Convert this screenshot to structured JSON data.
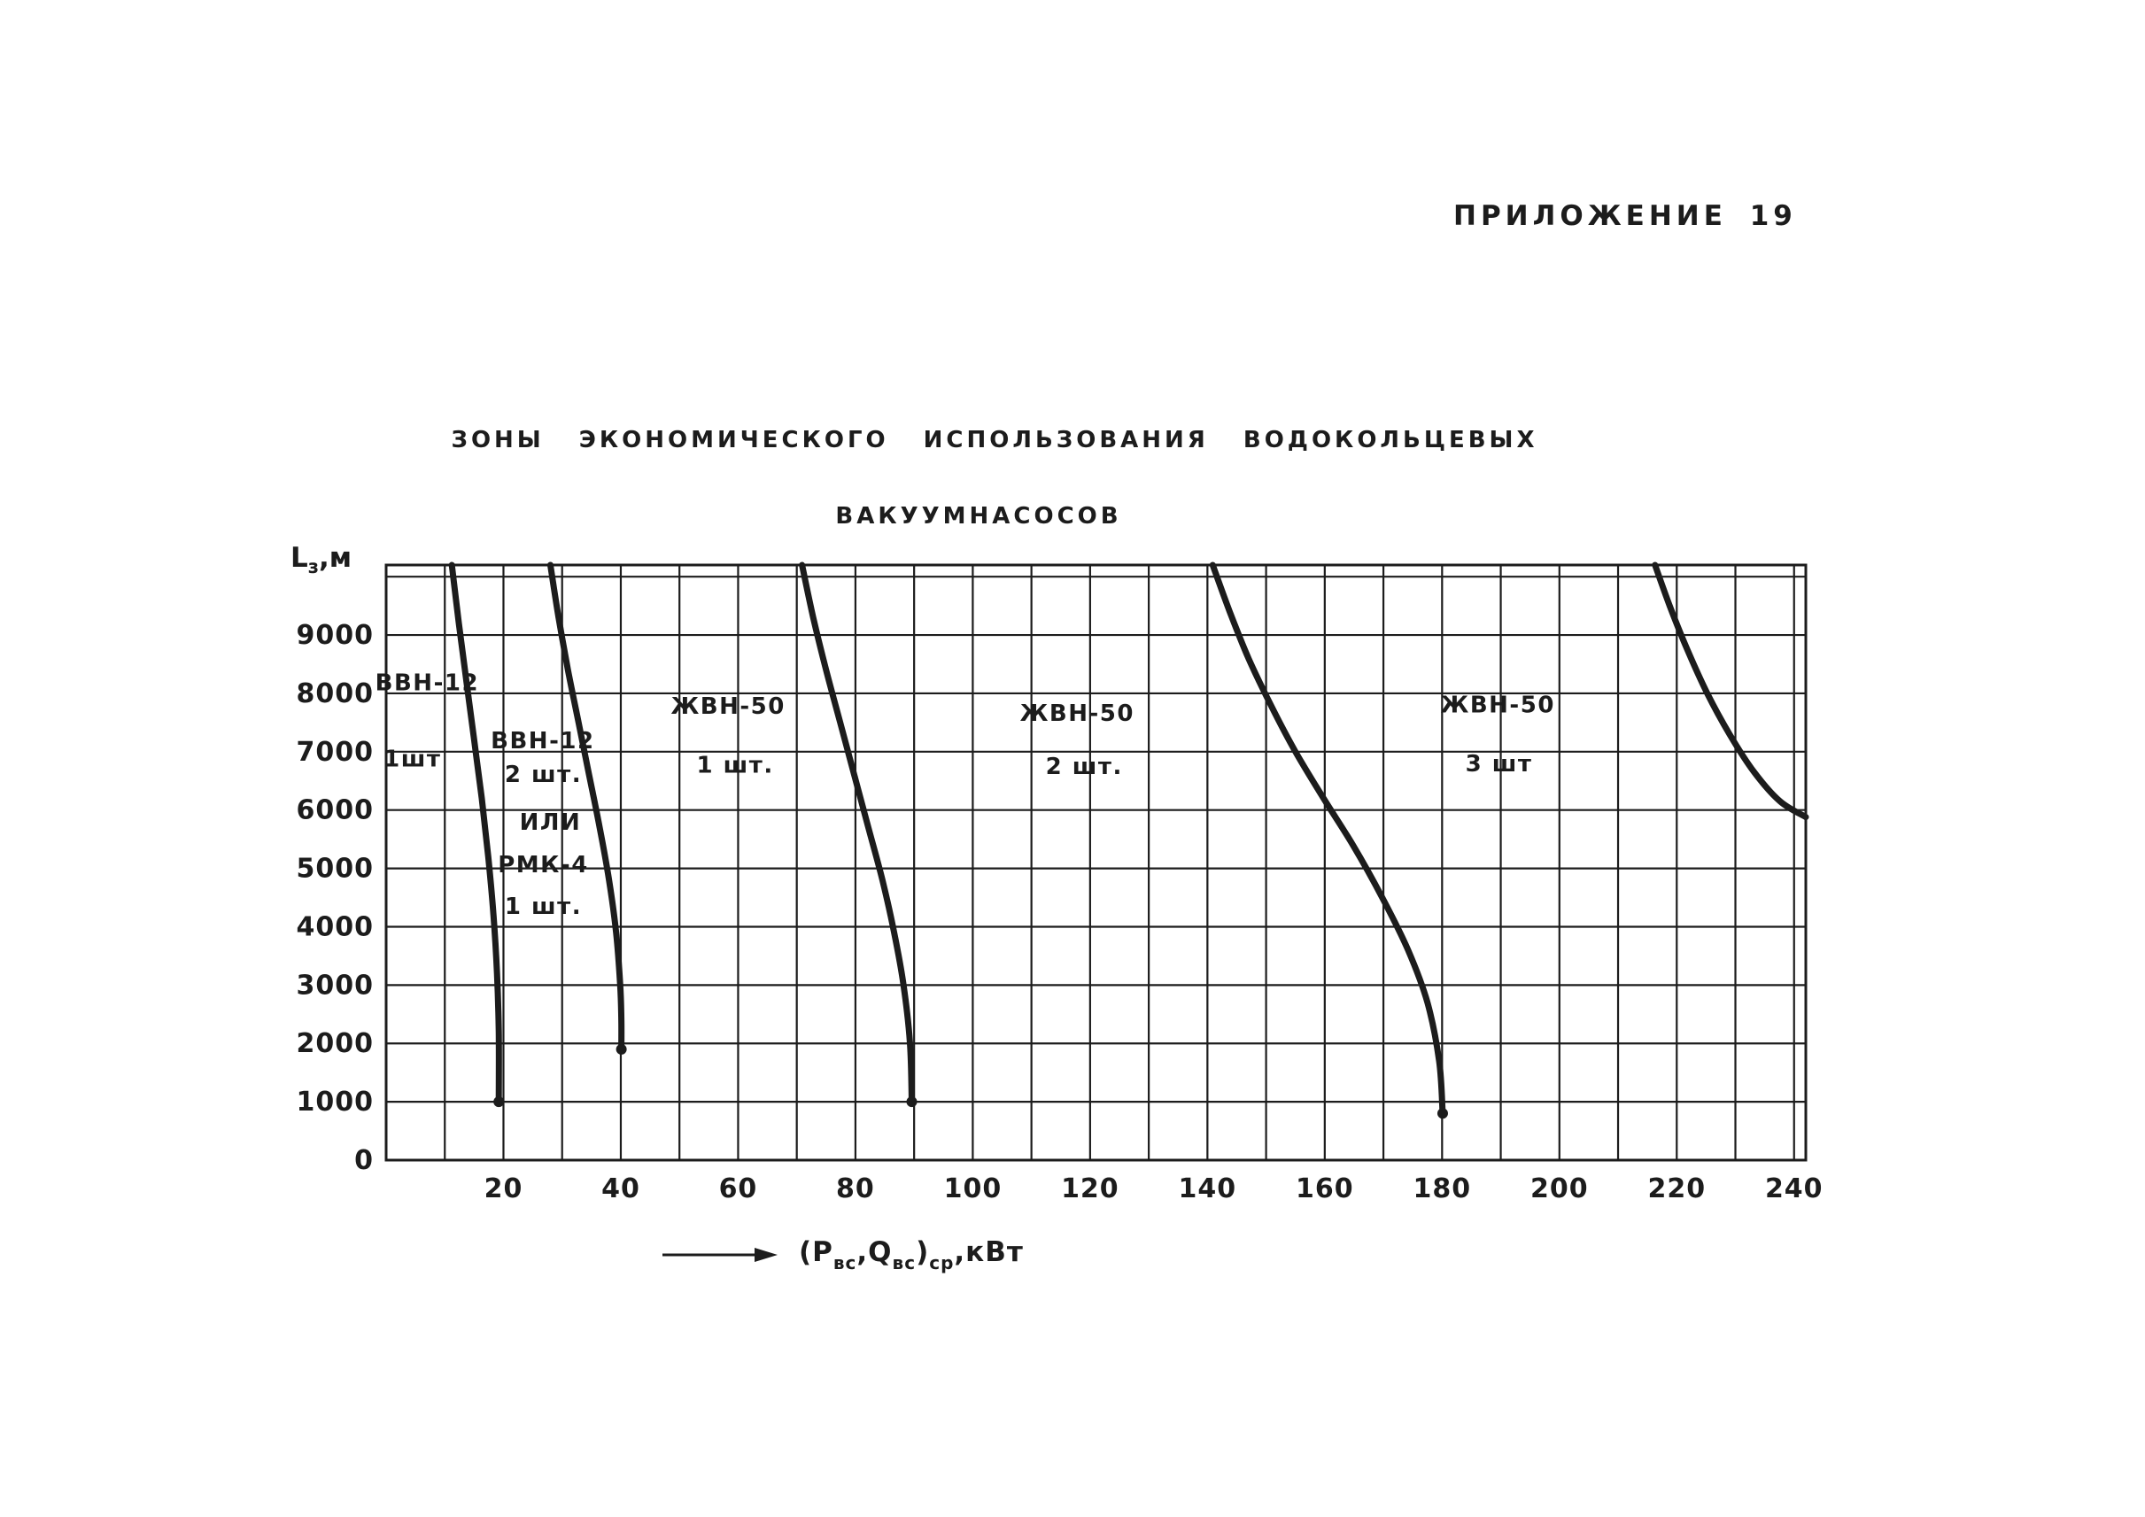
{
  "page": {
    "background": "#ffffff",
    "ink_color": "#1c1c1c"
  },
  "header": {
    "appendix": "ПРИЛОЖЕНИЕ 19"
  },
  "title": {
    "line1": "ЗОНЫ ЭКОНОМИЧЕСКОГО ИСПОЛЬЗОВАНИЯ ВОДОКОЛЬЦЕВЫХ",
    "line2": "ВАКУУМНАСОСОВ"
  },
  "axis_labels": {
    "y": {
      "main": "L",
      "sub": "з",
      "unit": ",м"
    },
    "x": {
      "seg1": "(Р",
      "sub1": "вс",
      "seg2": ",Q",
      "sub2": "вс",
      "seg3": ")",
      "sub3": "ср",
      "seg4": ",кВт"
    }
  },
  "chart_data": {
    "type": "line",
    "title": "Зоны экономического использования водокольцевых вакуумнасосов",
    "xlabel": "(Рвс,Qвс)ср, кВт",
    "ylabel": "Lз, м",
    "xlim": [
      0,
      242
    ],
    "ylim": [
      0,
      10200
    ],
    "x_ticks": [
      20,
      40,
      60,
      80,
      100,
      120,
      140,
      160,
      180,
      200,
      220,
      240
    ],
    "y_ticks": [
      0,
      1000,
      2000,
      3000,
      4000,
      5000,
      6000,
      7000,
      8000,
      9000
    ],
    "grid": {
      "x_step": 10,
      "y_step": 1000,
      "on": true
    },
    "ink_color": "#1c1c1c",
    "legend_position": "none",
    "series": [
      {
        "name": "boundary-vvn12-1",
        "end_dot": true,
        "points": [
          [
            11.2,
            10200
          ],
          [
            12.4,
            9200
          ],
          [
            13.7,
            8200
          ],
          [
            15.0,
            7200
          ],
          [
            16.3,
            6200
          ],
          [
            17.4,
            5200
          ],
          [
            18.3,
            4200
          ],
          [
            18.9,
            3200
          ],
          [
            19.2,
            2200
          ],
          [
            19.2,
            1000
          ]
        ]
      },
      {
        "name": "boundary-vvn12-2",
        "end_dot": true,
        "points": [
          [
            28.0,
            10200
          ],
          [
            29.4,
            9300
          ],
          [
            31.0,
            8400
          ],
          [
            32.8,
            7500
          ],
          [
            34.6,
            6600
          ],
          [
            36.4,
            5700
          ],
          [
            38.0,
            4800
          ],
          [
            39.2,
            3900
          ],
          [
            39.9,
            3000
          ],
          [
            40.1,
            2400
          ],
          [
            40.1,
            1900
          ]
        ]
      },
      {
        "name": "boundary-zhvn50-1",
        "end_dot": true,
        "points": [
          [
            70.9,
            10200
          ],
          [
            72.8,
            9300
          ],
          [
            75.0,
            8400
          ],
          [
            77.4,
            7500
          ],
          [
            79.8,
            6600
          ],
          [
            82.2,
            5700
          ],
          [
            84.6,
            4800
          ],
          [
            86.6,
            3900
          ],
          [
            88.2,
            3000
          ],
          [
            89.3,
            2000
          ],
          [
            89.6,
            1000
          ]
        ]
      },
      {
        "name": "boundary-zhvn50-2",
        "end_dot": true,
        "points": [
          [
            140.9,
            10200
          ],
          [
            143.8,
            9400
          ],
          [
            147.0,
            8600
          ],
          [
            150.8,
            7800
          ],
          [
            155.0,
            7000
          ],
          [
            159.8,
            6200
          ],
          [
            164.8,
            5400
          ],
          [
            169.8,
            4500
          ],
          [
            174.2,
            3600
          ],
          [
            177.5,
            2700
          ],
          [
            179.5,
            1700
          ],
          [
            180.1,
            800
          ]
        ]
      },
      {
        "name": "boundary-zhvn50-3",
        "end_dot": false,
        "points": [
          [
            216.3,
            10200
          ],
          [
            218.8,
            9500
          ],
          [
            221.8,
            8750
          ],
          [
            225.2,
            8000
          ],
          [
            229.0,
            7300
          ],
          [
            233.2,
            6650
          ],
          [
            237.6,
            6150
          ],
          [
            242,
            5880
          ]
        ]
      }
    ],
    "zones": [
      {
        "name": "zone-vvn12-1sht",
        "lines": [
          {
            "text": "ВВН-12",
            "x": 7.0,
            "y": 8050
          },
          {
            "text": "1шт",
            "x": 4.5,
            "y": 6750
          }
        ]
      },
      {
        "name": "zone-vvn12-2sht-ili-rmk4-1sht",
        "lines": [
          {
            "text": "ВВН-12",
            "x": 26.7,
            "y": 7060
          },
          {
            "text": "2 шт.",
            "x": 26.8,
            "y": 6480
          },
          {
            "text": "ИЛИ",
            "x": 28.0,
            "y": 5660
          },
          {
            "text": "РМК-4",
            "x": 26.8,
            "y": 4930
          },
          {
            "text": "1 шт.",
            "x": 26.8,
            "y": 4220
          }
        ]
      },
      {
        "name": "zone-zhvn50-1sht",
        "lines": [
          {
            "text": "ЖВН-50",
            "x": 58.3,
            "y": 7650
          },
          {
            "text": "1 шт.",
            "x": 59.5,
            "y": 6640
          }
        ]
      },
      {
        "name": "zone-zhvn50-2sht",
        "lines": [
          {
            "text": "ЖВН-50",
            "x": 117.8,
            "y": 7530
          },
          {
            "text": "2 шт.",
            "x": 119.0,
            "y": 6620
          }
        ]
      },
      {
        "name": "zone-zhvn50-3sht",
        "lines": [
          {
            "text": "ЖВН-50",
            "x": 189.5,
            "y": 7670
          },
          {
            "text": "3 шт",
            "x": 189.7,
            "y": 6660
          }
        ]
      }
    ]
  }
}
